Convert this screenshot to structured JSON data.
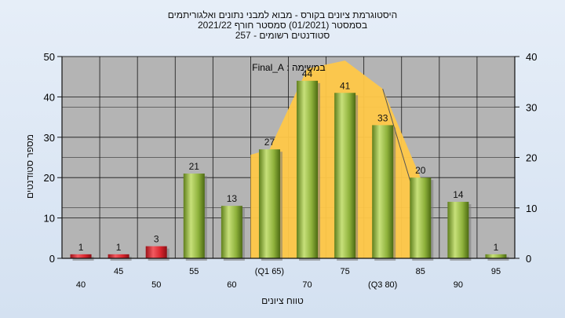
{
  "title": {
    "line1": "היסטוגרמת ציונים בקורס - מבוא למבני נתונים ואלגוריתמים",
    "line2": "בסמסטר  (01/2021)  סמסטר חורף 2021/22",
    "line3": "סטודנטים רשומים - 257"
  },
  "colors": {
    "plot_bg": "#b4b4b4",
    "grid": "#141414",
    "red_bar": "#d8252d",
    "green_bar": "#8fb23c",
    "curve_fill": "#ffc848"
  },
  "chart_data": {
    "type": "bar",
    "categories": [
      "40",
      "45",
      "50",
      "55",
      "60",
      "(Q1 65)",
      "70",
      "75",
      "(Q3 80)",
      "85",
      "90",
      "95"
    ],
    "values": [
      1,
      1,
      3,
      21,
      13,
      27,
      44,
      41,
      33,
      20,
      14,
      1
    ],
    "bar_colors": [
      "red",
      "red",
      "red",
      "green",
      "green",
      "green",
      "green",
      "green",
      "green",
      "green",
      "green",
      "green"
    ],
    "curve": {
      "name": "במשימה : Final_A",
      "values": [
        0,
        0,
        0,
        0,
        0,
        27,
        47,
        49,
        42,
        20,
        0,
        0
      ]
    },
    "ylabel": "מספר סטודנטים",
    "xlabel": "טווח ציונים",
    "ylim": [
      0,
      50
    ],
    "y_ticks": [
      0,
      10,
      20,
      30,
      40,
      50
    ],
    "y2lim": [
      0,
      40
    ],
    "y2_ticks": [
      0,
      10,
      20,
      30,
      40
    ],
    "grid": true
  }
}
